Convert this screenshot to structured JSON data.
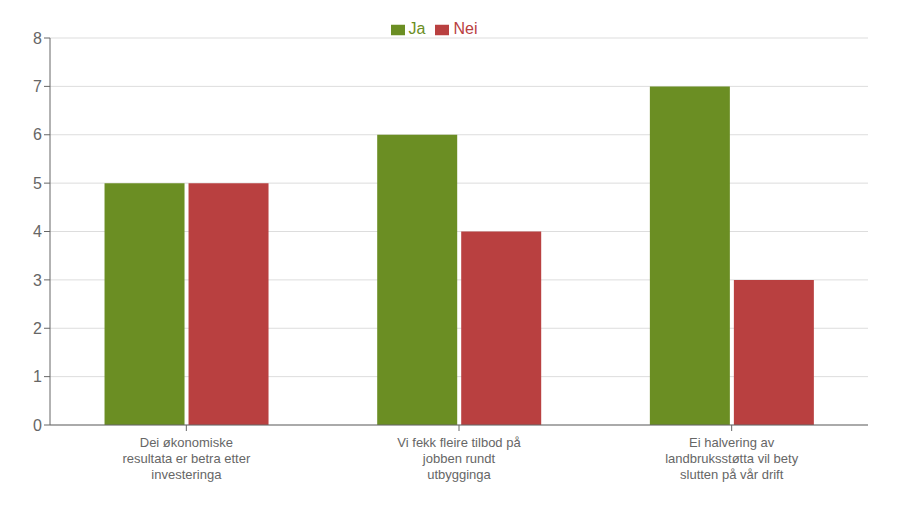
{
  "chart_data": {
    "type": "bar",
    "categories": [
      "Dei økonomiske\nresultata er betra etter\ninvesteringa",
      "Vi fekk fleire tilbod på\njobben rundt\nutbygginga",
      "Ei halvering av\nlandbruksstøtta vil bety\nslutten på vår drift"
    ],
    "series": [
      {
        "name": "Ja",
        "color": "#6b8e23",
        "values": [
          5,
          6,
          7
        ]
      },
      {
        "name": "Nei",
        "color": "#b94040",
        "values": [
          5,
          4,
          3
        ]
      }
    ],
    "ylim": [
      0,
      8
    ],
    "yticks": [
      0,
      1,
      2,
      3,
      4,
      5,
      6,
      7,
      8
    ],
    "grid": true,
    "legend": "top"
  }
}
